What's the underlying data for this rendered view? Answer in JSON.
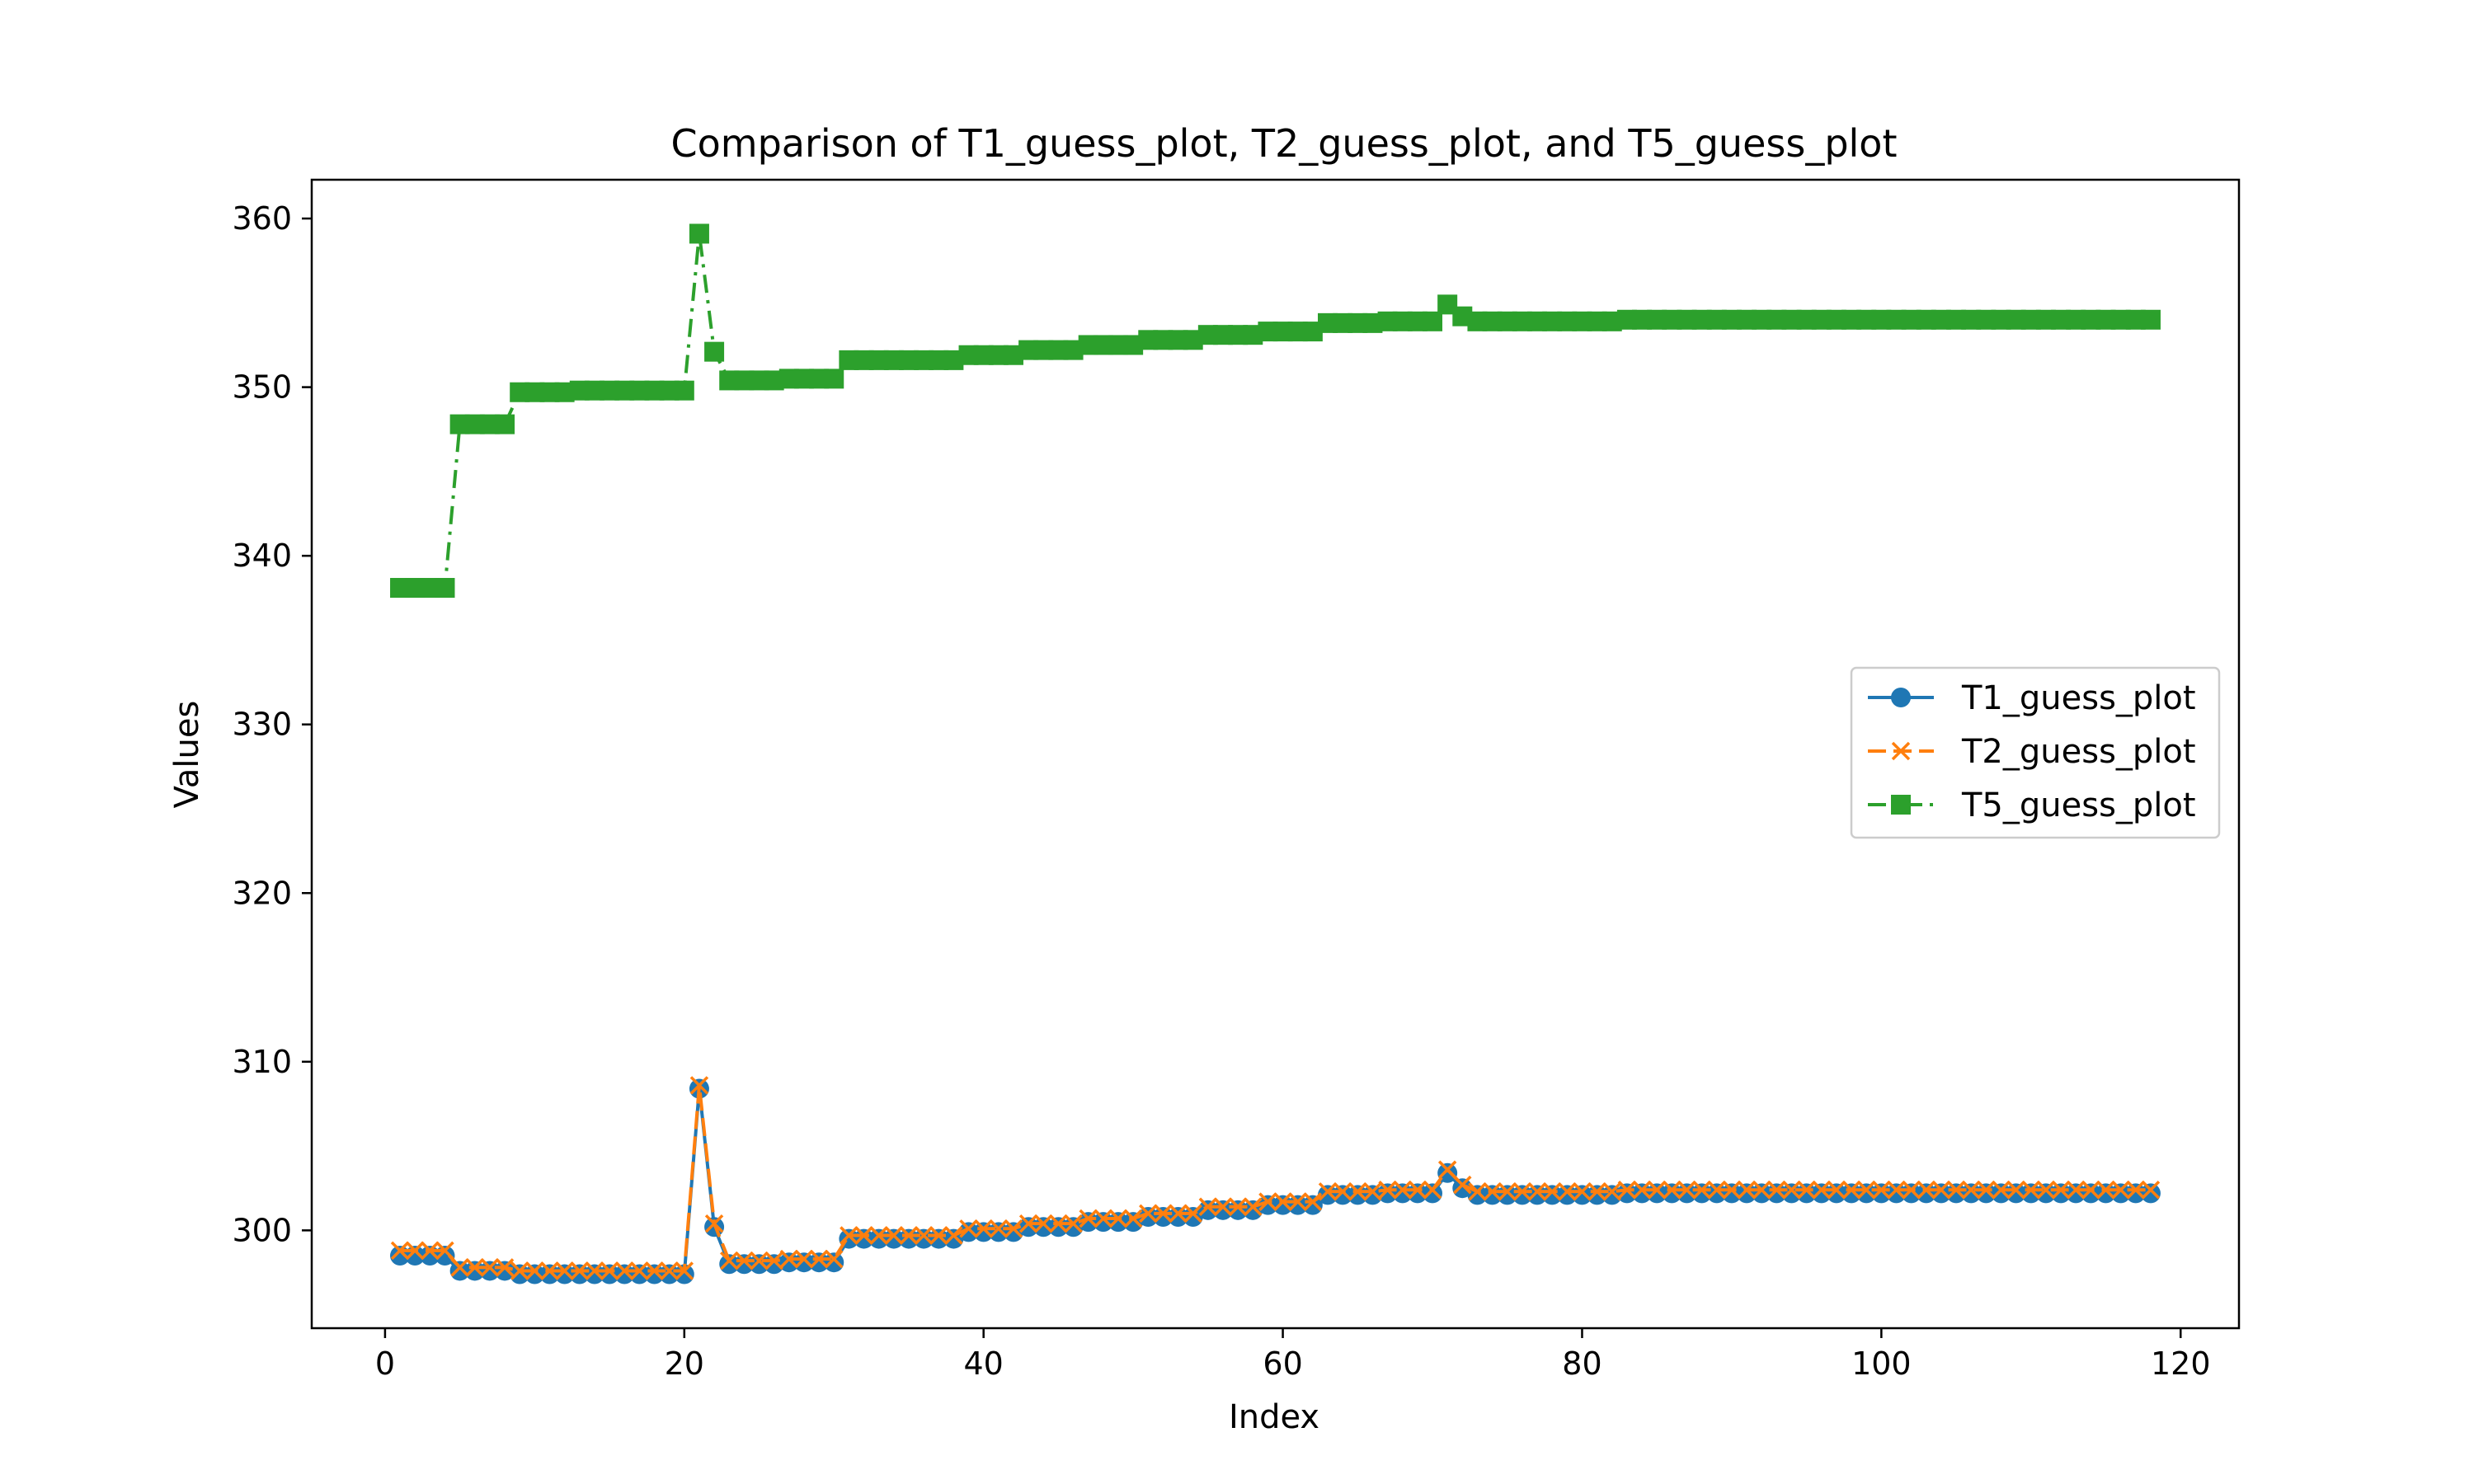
{
  "chart_data": {
    "type": "line",
    "title": "Comparison of T1_guess_plot, T2_guess_plot, and T5_guess_plot",
    "xlabel": "Index",
    "ylabel": "Values",
    "xlim": [
      -4.9,
      123.9
    ],
    "ylim": [
      294.2,
      362.3
    ],
    "xticks": [
      0,
      20,
      40,
      60,
      80,
      100,
      120
    ],
    "yticks": [
      300,
      310,
      320,
      330,
      340,
      350,
      360
    ],
    "grid": false,
    "legend_position": "center-right",
    "series": [
      {
        "name": "T1_guess_plot",
        "color": "#1f77b4",
        "linestyle": "solid",
        "marker": "circle",
        "x": [
          1,
          2,
          3,
          4,
          5,
          6,
          7,
          8,
          9,
          10,
          11,
          12,
          13,
          14,
          15,
          16,
          17,
          18,
          19,
          20,
          21,
          22,
          23,
          24,
          25,
          26,
          27,
          28,
          29,
          30,
          31,
          32,
          33,
          34,
          35,
          36,
          37,
          38,
          39,
          40,
          41,
          42,
          43,
          44,
          45,
          46,
          47,
          48,
          49,
          50,
          51,
          52,
          53,
          54,
          55,
          56,
          57,
          58,
          59,
          60,
          61,
          62,
          63,
          64,
          65,
          66,
          67,
          68,
          69,
          70,
          71,
          72,
          73,
          74,
          75,
          76,
          77,
          78,
          79,
          80,
          81,
          82,
          83,
          84,
          85,
          86,
          87,
          88,
          89,
          90,
          91,
          92,
          93,
          94,
          95,
          96,
          97,
          98,
          99,
          100,
          101,
          102,
          103,
          104,
          105,
          106,
          107,
          108,
          109,
          110,
          111,
          112,
          113,
          114,
          115,
          116,
          117,
          118
        ],
        "values": [
          298.5,
          298.5,
          298.5,
          298.5,
          297.6,
          297.6,
          297.6,
          297.6,
          297.4,
          297.4,
          297.4,
          297.4,
          297.4,
          297.4,
          297.4,
          297.4,
          297.4,
          297.4,
          297.4,
          297.4,
          308.4,
          300.2,
          298.0,
          298.0,
          298.0,
          298.0,
          298.1,
          298.1,
          298.1,
          298.1,
          299.5,
          299.5,
          299.5,
          299.5,
          299.5,
          299.5,
          299.5,
          299.5,
          299.9,
          299.9,
          299.9,
          299.9,
          300.2,
          300.2,
          300.2,
          300.2,
          300.5,
          300.5,
          300.5,
          300.5,
          300.8,
          300.8,
          300.8,
          300.8,
          301.2,
          301.2,
          301.2,
          301.2,
          301.5,
          301.5,
          301.5,
          301.5,
          302.1,
          302.1,
          302.1,
          302.1,
          302.2,
          302.2,
          302.2,
          302.2,
          303.4,
          302.5,
          302.1,
          302.1,
          302.1,
          302.1,
          302.1,
          302.1,
          302.1,
          302.1,
          302.1,
          302.1,
          302.2,
          302.2,
          302.2,
          302.2,
          302.2,
          302.2,
          302.2,
          302.2,
          302.2,
          302.2,
          302.2,
          302.2,
          302.2,
          302.2,
          302.2,
          302.2,
          302.2,
          302.2,
          302.2,
          302.2,
          302.2,
          302.2,
          302.2,
          302.2,
          302.2,
          302.2,
          302.2,
          302.2,
          302.2,
          302.2,
          302.2,
          302.2,
          302.2,
          302.2,
          302.2,
          302.2
        ]
      },
      {
        "name": "T2_guess_plot",
        "color": "#ff7f0e",
        "linestyle": "dashed",
        "marker": "x",
        "x": [
          1,
          2,
          3,
          4,
          5,
          6,
          7,
          8,
          9,
          10,
          11,
          12,
          13,
          14,
          15,
          16,
          17,
          18,
          19,
          20,
          21,
          22,
          23,
          24,
          25,
          26,
          27,
          28,
          29,
          30,
          31,
          32,
          33,
          34,
          35,
          36,
          37,
          38,
          39,
          40,
          41,
          42,
          43,
          44,
          45,
          46,
          47,
          48,
          49,
          50,
          51,
          52,
          53,
          54,
          55,
          56,
          57,
          58,
          59,
          60,
          61,
          62,
          63,
          64,
          65,
          66,
          67,
          68,
          69,
          70,
          71,
          72,
          73,
          74,
          75,
          76,
          77,
          78,
          79,
          80,
          81,
          82,
          83,
          84,
          85,
          86,
          87,
          88,
          89,
          90,
          91,
          92,
          93,
          94,
          95,
          96,
          97,
          98,
          99,
          100,
          101,
          102,
          103,
          104,
          105,
          106,
          107,
          108,
          109,
          110,
          111,
          112,
          113,
          114,
          115,
          116,
          117,
          118
        ],
        "values": [
          298.8,
          298.8,
          298.8,
          298.8,
          297.8,
          297.8,
          297.8,
          297.8,
          297.6,
          297.6,
          297.6,
          297.6,
          297.6,
          297.6,
          297.6,
          297.6,
          297.6,
          297.6,
          297.6,
          297.6,
          308.6,
          300.4,
          298.2,
          298.2,
          298.2,
          298.2,
          298.3,
          298.3,
          298.3,
          298.3,
          299.7,
          299.7,
          299.7,
          299.7,
          299.7,
          299.7,
          299.7,
          299.7,
          300.1,
          300.1,
          300.1,
          300.1,
          300.4,
          300.4,
          300.4,
          300.4,
          300.7,
          300.7,
          300.7,
          300.7,
          301.0,
          301.0,
          301.0,
          301.0,
          301.4,
          301.4,
          301.4,
          301.4,
          301.7,
          301.7,
          301.7,
          301.7,
          302.3,
          302.3,
          302.3,
          302.3,
          302.4,
          302.4,
          302.4,
          302.4,
          303.6,
          302.7,
          302.3,
          302.3,
          302.3,
          302.3,
          302.3,
          302.3,
          302.3,
          302.3,
          302.3,
          302.3,
          302.4,
          302.4,
          302.4,
          302.4,
          302.4,
          302.4,
          302.4,
          302.4,
          302.4,
          302.4,
          302.4,
          302.4,
          302.4,
          302.4,
          302.4,
          302.4,
          302.4,
          302.4,
          302.4,
          302.4,
          302.4,
          302.4,
          302.4,
          302.4,
          302.4,
          302.4,
          302.4,
          302.4,
          302.4,
          302.4,
          302.4,
          302.4,
          302.4,
          302.4,
          302.4,
          302.4
        ]
      },
      {
        "name": "T5_guess_plot",
        "color": "#2ca02c",
        "linestyle": "dashdot",
        "marker": "square",
        "x": [
          1,
          2,
          3,
          4,
          5,
          6,
          7,
          8,
          9,
          10,
          11,
          12,
          13,
          14,
          15,
          16,
          17,
          18,
          19,
          20,
          21,
          22,
          23,
          24,
          25,
          26,
          27,
          28,
          29,
          30,
          31,
          32,
          33,
          34,
          35,
          36,
          37,
          38,
          39,
          40,
          41,
          42,
          43,
          44,
          45,
          46,
          47,
          48,
          49,
          50,
          51,
          52,
          53,
          54,
          55,
          56,
          57,
          58,
          59,
          60,
          61,
          62,
          63,
          64,
          65,
          66,
          67,
          68,
          69,
          70,
          71,
          72,
          73,
          74,
          75,
          76,
          77,
          78,
          79,
          80,
          81,
          82,
          83,
          84,
          85,
          86,
          87,
          88,
          89,
          90,
          91,
          92,
          93,
          94,
          95,
          96,
          97,
          98,
          99,
          100,
          101,
          102,
          103,
          104,
          105,
          106,
          107,
          108,
          109,
          110,
          111,
          112,
          113,
          114,
          115,
          116,
          117,
          118
        ],
        "values": [
          338.1,
          338.1,
          338.1,
          338.1,
          347.8,
          347.8,
          347.8,
          347.8,
          349.7,
          349.7,
          349.7,
          349.7,
          349.8,
          349.8,
          349.8,
          349.8,
          349.8,
          349.8,
          349.8,
          349.8,
          359.1,
          352.1,
          350.4,
          350.4,
          350.4,
          350.4,
          350.5,
          350.5,
          350.5,
          350.5,
          351.6,
          351.6,
          351.6,
          351.6,
          351.6,
          351.6,
          351.6,
          351.6,
          351.9,
          351.9,
          351.9,
          351.9,
          352.2,
          352.2,
          352.2,
          352.2,
          352.5,
          352.5,
          352.5,
          352.5,
          352.8,
          352.8,
          352.8,
          352.8,
          353.1,
          353.1,
          353.1,
          353.1,
          353.3,
          353.3,
          353.3,
          353.3,
          353.8,
          353.8,
          353.8,
          353.8,
          353.9,
          353.9,
          353.9,
          353.9,
          354.9,
          354.2,
          353.9,
          353.9,
          353.9,
          353.9,
          353.9,
          353.9,
          353.9,
          353.9,
          353.9,
          353.9,
          354.0,
          354.0,
          354.0,
          354.0,
          354.0,
          354.0,
          354.0,
          354.0,
          354.0,
          354.0,
          354.0,
          354.0,
          354.0,
          354.0,
          354.0,
          354.0,
          354.0,
          354.0,
          354.0,
          354.0,
          354.0,
          354.0,
          354.0,
          354.0,
          354.0,
          354.0,
          354.0,
          354.0,
          354.0,
          354.0,
          354.0,
          354.0,
          354.0,
          354.0,
          354.0,
          354.0
        ]
      }
    ]
  }
}
